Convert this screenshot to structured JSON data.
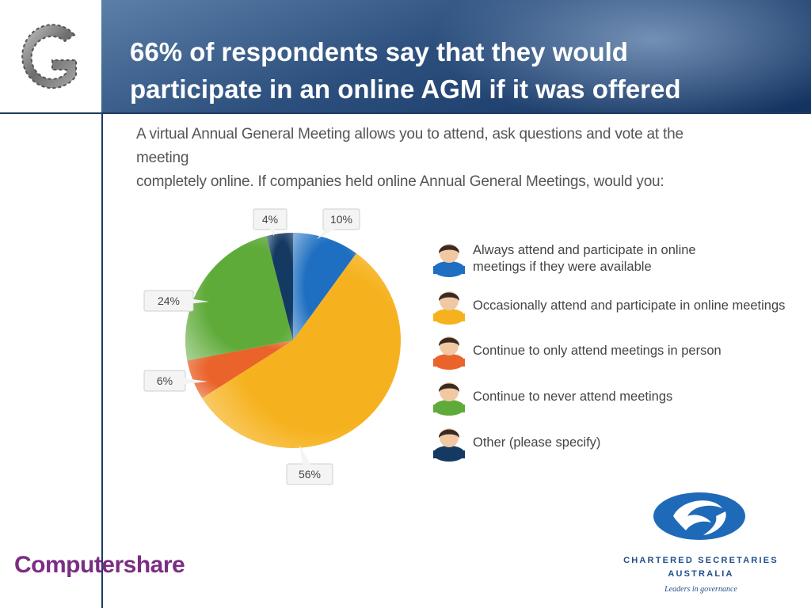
{
  "header": {
    "title_line1": "66% of respondents say that they would",
    "title_line2": "participate in an online AGM if it was offered"
  },
  "question": {
    "line1": "A virtual Annual General Meeting allows you to attend, ask questions and vote at the meeting",
    "line2": "completely online. If companies held online Annual General Meetings, would you:"
  },
  "chart_data": {
    "type": "pie",
    "slices": [
      {
        "label": "Always attend and participate in online meetings if they were available",
        "value": 10,
        "display": "10%",
        "color": "#1e6fc1"
      },
      {
        "label": "Occasionally attend and participate in online meetings",
        "value": 56,
        "display": "56%",
        "color": "#f6b21e"
      },
      {
        "label": "Continue to only attend meetings in person",
        "value": 6,
        "display": "6%",
        "color": "#e9632a"
      },
      {
        "label": "Continue to never attend meetings",
        "value": 24,
        "display": "24%",
        "color": "#5fab3a"
      },
      {
        "label": "Other (please specify)",
        "value": 4,
        "display": "4%",
        "color": "#143a62"
      }
    ]
  },
  "legend": {
    "items": [
      {
        "line1": "Always attend and participate in online",
        "line2": "meetings if they were available",
        "color": "#1e6fc1"
      },
      {
        "line1": "Occasionally attend and participate in online meetings",
        "line2": "",
        "color": "#f6b21e"
      },
      {
        "line1": "Continue to only attend meetings in person",
        "line2": "",
        "color": "#e9632a"
      },
      {
        "line1": "Continue to never attend meetings",
        "line2": "",
        "color": "#5fab3a"
      },
      {
        "line1": "Other (please specify)",
        "line2": "",
        "color": "#143a62"
      }
    ]
  },
  "footer": {
    "cs_name_line1": "CHARTERED SECRETARIES",
    "cs_name_line2": "AUSTRALIA",
    "cs_tagline": "Leaders in governance",
    "computershare": "Computershare"
  },
  "colors": {
    "header_dark": "#13325f",
    "accent_line": "#1f3a63",
    "cs_blue": "#1f4e8c",
    "computershare_purple": "#7b2d83"
  }
}
